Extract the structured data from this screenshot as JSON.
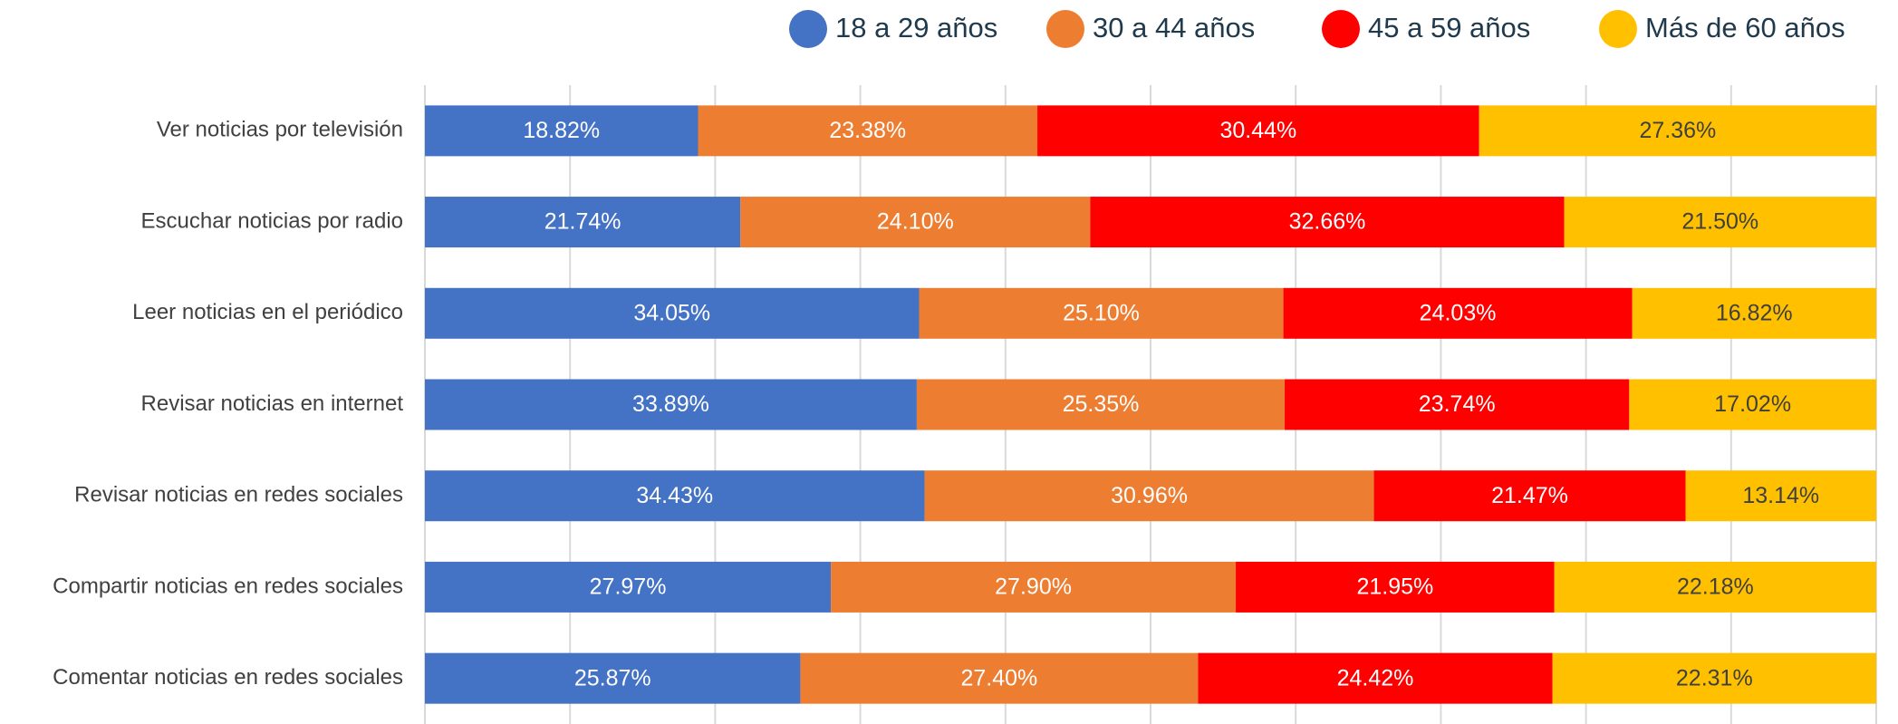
{
  "chart_data": {
    "type": "stacked_bar_horizontal",
    "categories": [
      "Ver noticias por televisión",
      "Escuchar noticias por radio",
      "Leer noticias en el periódico",
      "Revisar noticias en internet",
      "Revisar noticias en redes sociales",
      "Compartir noticias en redes sociales",
      "Comentar noticias en redes sociales"
    ],
    "series": [
      {
        "name": "18 a 29 años",
        "color": "#4472c4",
        "values": [
          18.82,
          21.74,
          34.05,
          33.89,
          34.43,
          27.97,
          25.87
        ],
        "value_labels": [
          "18.82%",
          "21.74%",
          "34.05%",
          "33.89%",
          "34.43%",
          "27.97%",
          "25.87%"
        ]
      },
      {
        "name": "30 a 44 años",
        "color": "#ed7d31",
        "values": [
          23.38,
          24.1,
          25.1,
          25.35,
          30.96,
          27.9,
          27.4
        ],
        "value_labels": [
          "23.38%",
          "24.10%",
          "25.10%",
          "25.35%",
          "30.96%",
          "27.90%",
          "27.40%"
        ]
      },
      {
        "name": "45 a 59 años",
        "color": "#ff0000",
        "values": [
          30.44,
          32.66,
          24.03,
          23.74,
          21.47,
          21.95,
          24.42
        ],
        "value_labels": [
          "30.44%",
          "32.66%",
          "24.03%",
          "23.74%",
          "21.47%",
          "21.95%",
          "24.42%"
        ]
      },
      {
        "name": "Más de 60 años",
        "color": "#ffc000",
        "values": [
          27.36,
          21.5,
          16.82,
          17.02,
          13.14,
          22.18,
          22.31
        ],
        "value_labels": [
          "27.36%",
          "21.50%",
          "16.82%",
          "17.02%",
          "13.14%",
          "22.18%",
          "22.31%"
        ]
      }
    ],
    "xlim": [
      0,
      100
    ],
    "xticks": [
      0,
      10,
      20,
      30,
      40,
      50,
      60,
      70,
      80,
      90,
      100
    ],
    "grid": true,
    "legend": "top"
  }
}
